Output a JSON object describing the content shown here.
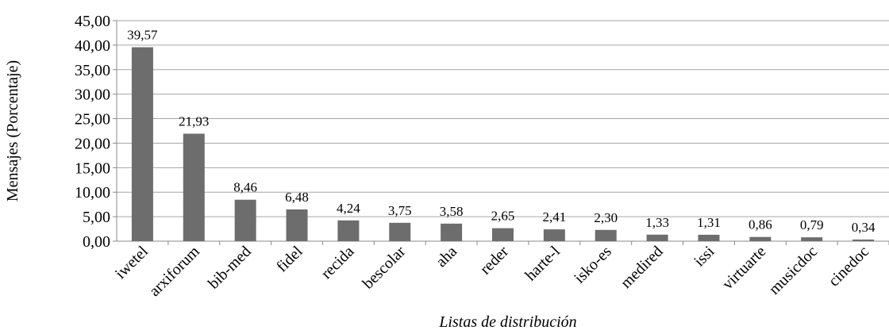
{
  "chart_data": {
    "type": "bar",
    "x_label": "Listas de distribución",
    "y_label": "Mensajes (Porcentaje)",
    "categories": [
      "iwetel",
      "arxiforum",
      "bib-med",
      "fidel",
      "recida",
      "bescolar",
      "aha",
      "reder",
      "harte-l",
      "isko-es",
      "medired",
      "issi",
      "virtuarte",
      "musicdoc",
      "cinedoc"
    ],
    "values": [
      39.57,
      21.93,
      8.46,
      6.48,
      4.24,
      3.75,
      3.58,
      2.65,
      2.41,
      2.3,
      1.33,
      1.31,
      0.86,
      0.79,
      0.34
    ],
    "value_labels": [
      "39,57",
      "21,93",
      "8,46",
      "6,48",
      "4,24",
      "3,75",
      "3,58",
      "2,65",
      "2,41",
      "2,30",
      "1,33",
      "1,31",
      "0,86",
      "0,79",
      "0,34"
    ],
    "color": "#6d6d6d",
    "ylim": [
      0,
      45
    ],
    "yticks": [
      {
        "value": 0,
        "label": "0,00"
      },
      {
        "value": 5,
        "label": "5,00"
      },
      {
        "value": 10,
        "label": "10,00"
      },
      {
        "value": 15,
        "label": "15,00"
      },
      {
        "value": 20,
        "label": "20,00"
      },
      {
        "value": 25,
        "label": "25,00"
      },
      {
        "value": 30,
        "label": "30,00"
      },
      {
        "value": 35,
        "label": "35,00"
      },
      {
        "value": 40,
        "label": "40,00"
      },
      {
        "value": 45,
        "label": "45,00"
      }
    ],
    "grid": true
  }
}
